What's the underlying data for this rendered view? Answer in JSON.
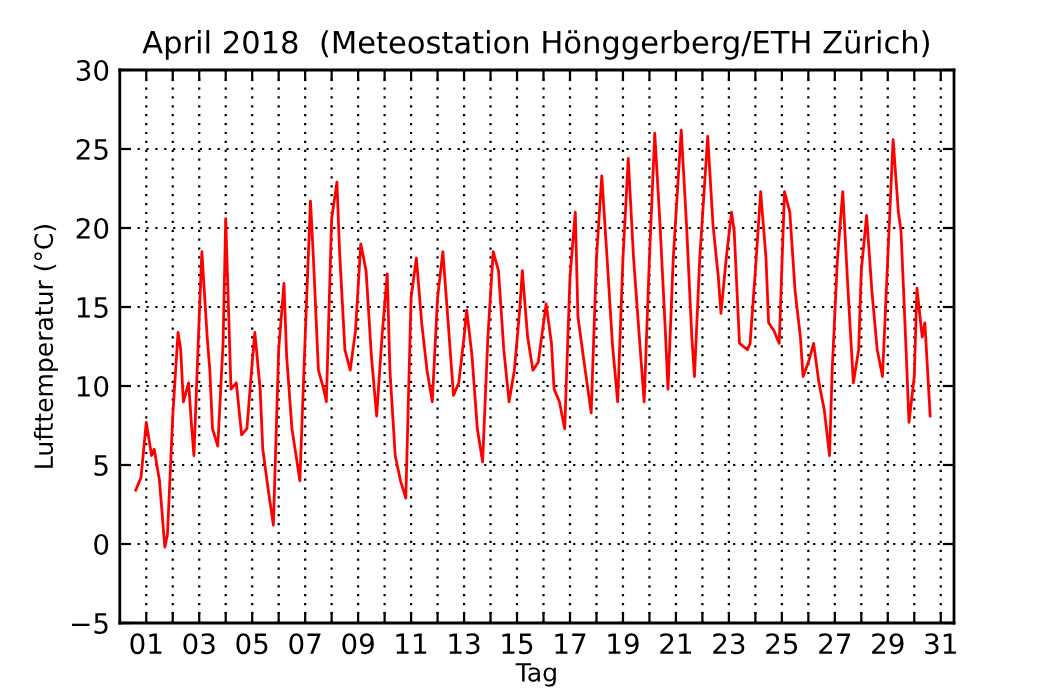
{
  "chart_data": {
    "type": "line",
    "title": "April 2018  (Meteostation Hönggerberg/ETH Zürich)",
    "xlabel": "Tag",
    "ylabel": "Lufttemperatur (°C)",
    "xlim": [
      0,
      31.5
    ],
    "ylim": [
      -5,
      30
    ],
    "xticks": [
      {
        "value": 1,
        "label": "01"
      },
      {
        "value": 2,
        "label": null
      },
      {
        "value": 3,
        "label": "03"
      },
      {
        "value": 4,
        "label": null
      },
      {
        "value": 5,
        "label": "05"
      },
      {
        "value": 6,
        "label": null
      },
      {
        "value": 7,
        "label": "07"
      },
      {
        "value": 8,
        "label": null
      },
      {
        "value": 9,
        "label": "09"
      },
      {
        "value": 10,
        "label": null
      },
      {
        "value": 11,
        "label": "11"
      },
      {
        "value": 12,
        "label": null
      },
      {
        "value": 13,
        "label": "13"
      },
      {
        "value": 14,
        "label": null
      },
      {
        "value": 15,
        "label": "15"
      },
      {
        "value": 16,
        "label": null
      },
      {
        "value": 17,
        "label": "17"
      },
      {
        "value": 18,
        "label": null
      },
      {
        "value": 19,
        "label": "19"
      },
      {
        "value": 20,
        "label": null
      },
      {
        "value": 21,
        "label": "21"
      },
      {
        "value": 22,
        "label": null
      },
      {
        "value": 23,
        "label": "23"
      },
      {
        "value": 24,
        "label": null
      },
      {
        "value": 25,
        "label": "25"
      },
      {
        "value": 26,
        "label": null
      },
      {
        "value": 27,
        "label": "27"
      },
      {
        "value": 28,
        "label": null
      },
      {
        "value": 29,
        "label": "29"
      },
      {
        "value": 30,
        "label": null
      },
      {
        "value": 31,
        "label": "31"
      }
    ],
    "yticks": [
      {
        "value": -5,
        "label": "−5"
      },
      0,
      5,
      10,
      15,
      20,
      25,
      30
    ],
    "grid": true,
    "marker": "none",
    "line_style": "solid",
    "series": [
      {
        "color": "#ff0000",
        "x": [
          0.6,
          0.8,
          1.0,
          1.2,
          1.3,
          1.5,
          1.6,
          1.7,
          1.8,
          2.0,
          2.2,
          2.3,
          2.4,
          2.6,
          2.7,
          2.8,
          3.0,
          3.1,
          3.3,
          3.4,
          3.5,
          3.7,
          3.9,
          4.0,
          4.2,
          4.4,
          4.6,
          4.8,
          5.0,
          5.1,
          5.3,
          5.4,
          5.6,
          5.8,
          6.0,
          6.2,
          6.3,
          6.5,
          6.8,
          7.0,
          7.2,
          7.3,
          7.5,
          7.7,
          7.8,
          8.0,
          8.2,
          8.3,
          8.5,
          8.7,
          8.9,
          9.1,
          9.3,
          9.5,
          9.7,
          9.9,
          10.1,
          10.2,
          10.4,
          10.6,
          10.8,
          11.0,
          11.2,
          11.4,
          11.6,
          11.8,
          12.0,
          12.2,
          12.4,
          12.6,
          12.8,
          13.0,
          13.1,
          13.3,
          13.5,
          13.7,
          13.9,
          14.1,
          14.3,
          14.5,
          14.7,
          14.9,
          15.1,
          15.2,
          15.4,
          15.6,
          15.8,
          16.1,
          16.3,
          16.4,
          16.6,
          16.8,
          17.0,
          17.2,
          17.3,
          17.5,
          17.8,
          18.0,
          18.2,
          18.4,
          18.6,
          18.8,
          19.0,
          19.2,
          19.4,
          19.6,
          19.8,
          20.0,
          20.2,
          20.4,
          20.6,
          20.7,
          20.9,
          21.2,
          21.4,
          21.6,
          21.7,
          21.9,
          22.2,
          22.4,
          22.6,
          22.7,
          22.9,
          23.1,
          23.2,
          23.4,
          23.7,
          23.8,
          24.0,
          24.2,
          24.4,
          24.5,
          24.7,
          24.9,
          25.1,
          25.3,
          25.5,
          25.7,
          25.8,
          26.0,
          26.2,
          26.4,
          26.6,
          26.8,
          26.9,
          27.1,
          27.3,
          27.5,
          27.7,
          27.9,
          28.0,
          28.2,
          28.4,
          28.6,
          28.8,
          29.0,
          29.2,
          29.4,
          29.5,
          29.7,
          29.8,
          30.0,
          30.1,
          30.3,
          30.4,
          30.6
        ],
        "values": [
          3.4,
          4.2,
          7.7,
          5.6,
          6.0,
          4.0,
          1.9,
          -0.2,
          0.6,
          8.1,
          13.4,
          12.3,
          9.0,
          10.2,
          7.7,
          5.6,
          14.4,
          18.5,
          13.1,
          11.0,
          7.3,
          6.2,
          12.7,
          20.6,
          9.8,
          10.2,
          6.9,
          7.3,
          11.5,
          13.4,
          9.8,
          6.0,
          3.5,
          1.2,
          12.3,
          16.5,
          11.9,
          7.3,
          4.0,
          13.1,
          21.7,
          18.5,
          11.0,
          9.8,
          9.0,
          20.6,
          22.9,
          18.5,
          12.3,
          11.0,
          13.5,
          19.0,
          17.3,
          11.9,
          8.1,
          13.1,
          17.1,
          11.0,
          5.6,
          4.0,
          2.9,
          15.6,
          18.1,
          14.0,
          11.0,
          9.0,
          15.6,
          18.5,
          14.0,
          9.4,
          10.2,
          13.1,
          14.8,
          11.9,
          7.3,
          5.2,
          13.1,
          18.5,
          17.3,
          12.3,
          9.0,
          11.0,
          14.8,
          17.3,
          13.1,
          11.0,
          11.5,
          15.2,
          12.7,
          9.8,
          9.0,
          7.3,
          16.9,
          21.0,
          14.4,
          11.9,
          8.3,
          18.1,
          23.3,
          18.1,
          12.7,
          9.0,
          18.1,
          24.4,
          18.1,
          13.5,
          9.0,
          18.1,
          26.0,
          20.2,
          13.5,
          9.8,
          18.1,
          26.2,
          20.2,
          13.1,
          10.6,
          18.1,
          25.8,
          20.2,
          16.9,
          14.6,
          18.1,
          21.0,
          19.8,
          12.7,
          12.3,
          12.7,
          17.3,
          22.3,
          18.1,
          14.0,
          13.5,
          12.7,
          22.3,
          21.0,
          16.0,
          13.1,
          10.6,
          11.5,
          12.7,
          10.2,
          8.5,
          5.6,
          11.0,
          18.1,
          22.3,
          16.0,
          10.2,
          12.3,
          17.3,
          20.8,
          16.0,
          12.3,
          10.6,
          18.1,
          25.6,
          21.0,
          19.8,
          11.9,
          7.7,
          10.6,
          16.2,
          13.1,
          14.0,
          8.1
        ]
      }
    ]
  }
}
